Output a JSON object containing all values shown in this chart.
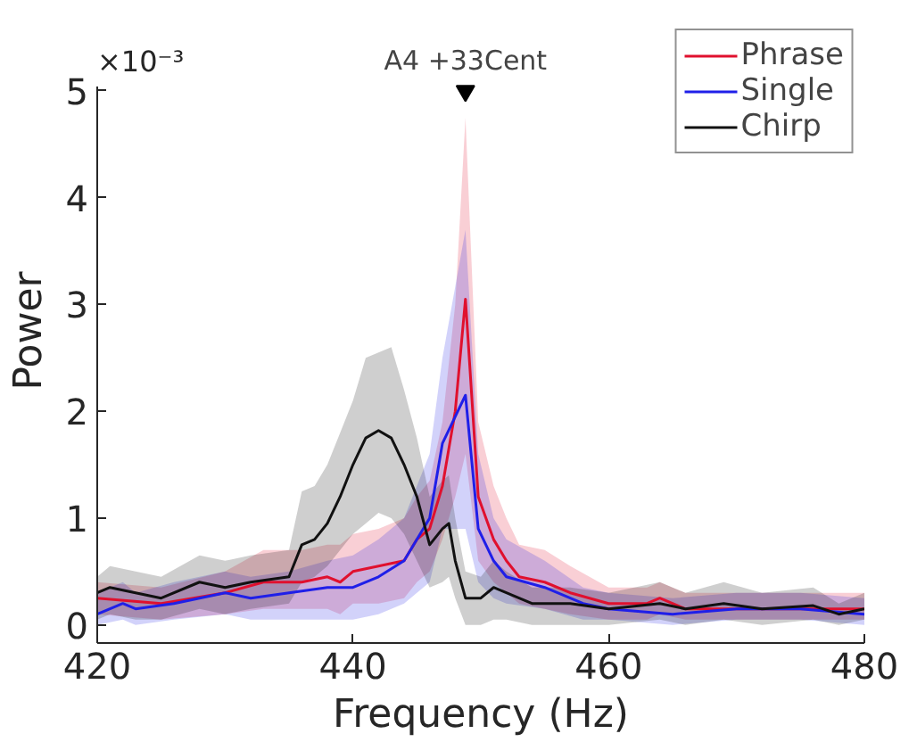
{
  "chart_data": {
    "type": "line",
    "xlabel": "Frequency (Hz)",
    "ylabel": "Power",
    "xlim": [
      420,
      480
    ],
    "xticks": [
      420,
      440,
      460,
      480
    ],
    "ylim": [
      -0.17,
      5.05
    ],
    "yticks": [
      0,
      1,
      2,
      3,
      4,
      5
    ],
    "grid": false,
    "legend": "top right",
    "line_style": "solid",
    "annotations": [
      "×10⁻³",
      {
        "text": "A4 +33Cent",
        "x": 448.8,
        "y": 5
      }
    ],
    "series": [
      {
        "name": "Phrase",
        "color": "#e0102e",
        "x": [
          420,
          425,
          430,
          433,
          436,
          438,
          439,
          440,
          442,
          444,
          445,
          446,
          447,
          448,
          448.8,
          449.8,
          451,
          452,
          453,
          455,
          457,
          460,
          463,
          464,
          466,
          470,
          475,
          480
        ],
        "values": [
          0.25,
          0.2,
          0.3,
          0.4,
          0.4,
          0.45,
          0.4,
          0.5,
          0.55,
          0.6,
          0.8,
          0.9,
          1.3,
          2.0,
          3.05,
          1.2,
          0.8,
          0.6,
          0.45,
          0.4,
          0.3,
          0.2,
          0.2,
          0.25,
          0.15,
          0.15,
          0.15,
          0.15
        ],
        "lower": [
          0.1,
          0.05,
          0.1,
          0.15,
          0.15,
          0.15,
          0.1,
          0.2,
          0.2,
          0.25,
          0.4,
          0.5,
          0.8,
          1.2,
          1.6,
          0.6,
          0.4,
          0.3,
          0.2,
          0.15,
          0.1,
          0.05,
          0.05,
          0.1,
          0.05,
          0.05,
          0.05,
          0.05
        ],
        "upper": [
          0.4,
          0.35,
          0.5,
          0.7,
          0.7,
          0.75,
          0.75,
          0.85,
          0.9,
          1.0,
          1.2,
          1.35,
          1.9,
          3.0,
          4.75,
          1.9,
          1.3,
          1.0,
          0.75,
          0.7,
          0.55,
          0.35,
          0.35,
          0.4,
          0.3,
          0.3,
          0.3,
          0.3
        ]
      },
      {
        "name": "Single",
        "color": "#1f1fe8",
        "x": [
          420,
          422,
          423,
          426,
          430,
          432,
          435,
          438,
          440,
          442,
          444,
          446,
          447,
          448.8,
          449.8,
          451,
          452,
          455,
          458,
          460,
          465,
          470,
          475,
          480
        ],
        "values": [
          0.1,
          0.2,
          0.15,
          0.2,
          0.3,
          0.25,
          0.3,
          0.35,
          0.35,
          0.45,
          0.6,
          1.0,
          1.7,
          2.15,
          0.9,
          0.6,
          0.45,
          0.35,
          0.2,
          0.15,
          0.1,
          0.15,
          0.15,
          0.1
        ],
        "lower": [
          0.0,
          0.05,
          0.0,
          0.05,
          0.1,
          0.05,
          0.05,
          0.05,
          0.05,
          0.1,
          0.2,
          0.4,
          0.9,
          0.9,
          0.4,
          0.25,
          0.2,
          0.15,
          0.05,
          0.05,
          0.0,
          0.05,
          0.05,
          0.0
        ],
        "upper": [
          0.3,
          0.4,
          0.3,
          0.4,
          0.5,
          0.45,
          0.5,
          0.6,
          0.65,
          0.8,
          1.0,
          1.6,
          2.5,
          3.7,
          1.6,
          1.0,
          0.8,
          0.6,
          0.35,
          0.3,
          0.25,
          0.3,
          0.3,
          0.25
        ]
      },
      {
        "name": "Chirp",
        "color": "#111111",
        "x": [
          420,
          421,
          423,
          425,
          428,
          430,
          432,
          435,
          436,
          437,
          438,
          439,
          440,
          441,
          442,
          443,
          444,
          445,
          446,
          447,
          447.5,
          448,
          448.8,
          450,
          451,
          452,
          454,
          457,
          460,
          464,
          466,
          469,
          472,
          476,
          478,
          480
        ],
        "values": [
          0.3,
          0.35,
          0.3,
          0.25,
          0.4,
          0.35,
          0.4,
          0.45,
          0.75,
          0.8,
          0.95,
          1.2,
          1.5,
          1.75,
          1.82,
          1.75,
          1.5,
          1.2,
          0.75,
          0.9,
          0.95,
          0.6,
          0.25,
          0.25,
          0.35,
          0.3,
          0.2,
          0.2,
          0.15,
          0.2,
          0.15,
          0.2,
          0.15,
          0.18,
          0.1,
          0.15
        ],
        "lower": [
          0.05,
          0.1,
          0.05,
          0.05,
          0.15,
          0.1,
          0.15,
          0.2,
          0.4,
          0.45,
          0.55,
          0.7,
          0.85,
          0.95,
          1.05,
          1.0,
          0.85,
          0.6,
          0.35,
          0.4,
          0.45,
          0.25,
          0.0,
          0.0,
          0.05,
          0.05,
          0.0,
          0.0,
          0.0,
          0.05,
          0.0,
          0.05,
          0.0,
          0.05,
          0.0,
          0.05
        ],
        "upper": [
          0.45,
          0.55,
          0.5,
          0.45,
          0.65,
          0.6,
          0.65,
          0.7,
          1.25,
          1.3,
          1.5,
          1.8,
          2.1,
          2.5,
          2.55,
          2.6,
          2.2,
          1.75,
          1.2,
          1.35,
          1.4,
          1.0,
          0.5,
          0.45,
          0.6,
          0.5,
          0.35,
          0.35,
          0.3,
          0.4,
          0.3,
          0.4,
          0.3,
          0.35,
          0.2,
          0.3
        ]
      },
      {
        "type": "scatter",
        "marker": "triangle",
        "color": "#000000",
        "x": [
          448.8
        ],
        "values": [
          5
        ]
      }
    ]
  }
}
